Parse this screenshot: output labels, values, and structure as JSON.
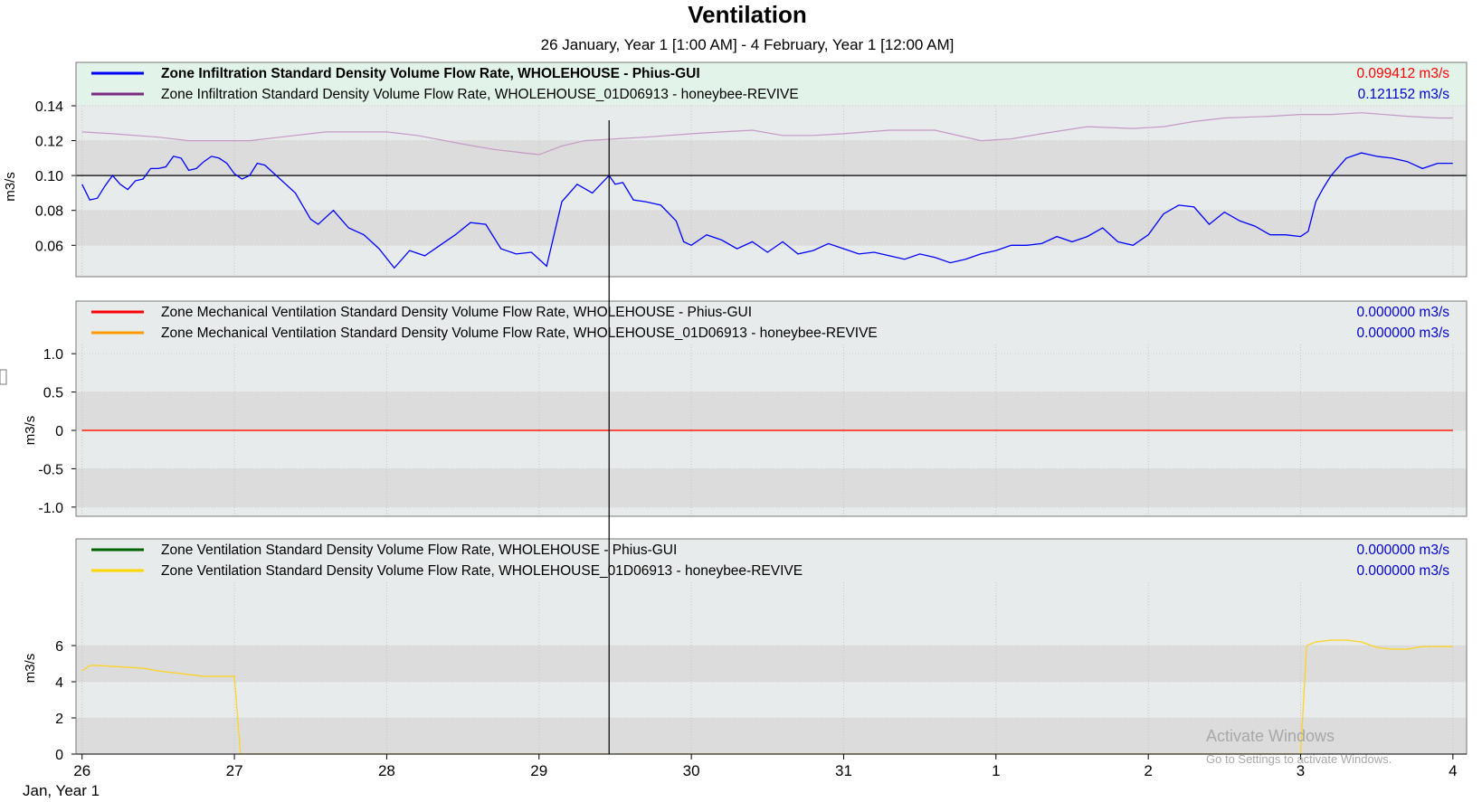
{
  "title": "Ventilation",
  "subtitle": "26 January, Year 1 [1:00 AM] - 4 February, Year 1 [12:00 AM]",
  "x_axis": {
    "tick_labels": [
      "26",
      "27",
      "28",
      "29",
      "30",
      "31",
      "1",
      "2",
      "3",
      "4"
    ],
    "tick_values": [
      0,
      1,
      2,
      3,
      4,
      5,
      6,
      7,
      8,
      9
    ],
    "start_label": "Jan, Year 1",
    "range": [
      -0.04,
      9.09
    ]
  },
  "cursor_x": 3.46,
  "watermark": {
    "title": "Activate Windows",
    "subtitle": "Go to Settings to activate Windows."
  },
  "colors": {
    "panel_bg": "#e8ebeb",
    "band_bg": "#dcdcdc",
    "legend_highlight": "#e2f4ea",
    "value_blue": "#0000cc",
    "value_red": "#ff0000"
  },
  "chart_data": [
    {
      "type": "line",
      "ylabel": "m3/s",
      "ylim": [
        0.042,
        0.14
      ],
      "yticks": [
        0.06,
        0.08,
        0.1,
        0.12,
        0.14
      ],
      "ytick_labels": [
        "0.06",
        "0.08",
        "0.10",
        "0.12",
        "0.14"
      ],
      "crosshair_y": 0.1,
      "highlighted": true,
      "series": [
        {
          "name": "Zone Infiltration Standard Density Volume Flow Rate, WHOLEHOUSE - Phius-GUI",
          "color": "#0000ff",
          "bold": true,
          "value_label": "0.099412 m3/s",
          "value_color": "#ff0000",
          "x": [
            0,
            0.05,
            0.1,
            0.15,
            0.2,
            0.25,
            0.3,
            0.35,
            0.4,
            0.45,
            0.5,
            0.55,
            0.6,
            0.65,
            0.7,
            0.75,
            0.8,
            0.85,
            0.9,
            0.95,
            1.0,
            1.05,
            1.1,
            1.15,
            1.2,
            1.3,
            1.4,
            1.5,
            1.55,
            1.65,
            1.75,
            1.85,
            1.95,
            2.05,
            2.15,
            2.25,
            2.35,
            2.45,
            2.55,
            2.65,
            2.75,
            2.85,
            2.95,
            3.05,
            3.15,
            3.25,
            3.35,
            3.46,
            3.5,
            3.55,
            3.62,
            3.7,
            3.8,
            3.9,
            3.95,
            4.0,
            4.1,
            4.2,
            4.3,
            4.4,
            4.5,
            4.6,
            4.7,
            4.8,
            4.9,
            5.0,
            5.1,
            5.2,
            5.3,
            5.4,
            5.5,
            5.6,
            5.7,
            5.8,
            5.9,
            6.0,
            6.1,
            6.2,
            6.3,
            6.4,
            6.5,
            6.6,
            6.7,
            6.8,
            6.9,
            7.0,
            7.1,
            7.2,
            7.3,
            7.4,
            7.5,
            7.6,
            7.7,
            7.8,
            7.9,
            8.0,
            8.05,
            8.1,
            8.15,
            8.2,
            8.3,
            8.4,
            8.5,
            8.6,
            8.7,
            8.8,
            8.9,
            9.0
          ],
          "y": [
            0.095,
            0.086,
            0.087,
            0.094,
            0.1,
            0.095,
            0.092,
            0.097,
            0.098,
            0.104,
            0.104,
            0.105,
            0.111,
            0.11,
            0.103,
            0.104,
            0.108,
            0.111,
            0.11,
            0.107,
            0.101,
            0.098,
            0.1,
            0.107,
            0.106,
            0.098,
            0.09,
            0.075,
            0.072,
            0.08,
            0.07,
            0.066,
            0.058,
            0.047,
            0.057,
            0.054,
            0.06,
            0.066,
            0.073,
            0.072,
            0.058,
            0.055,
            0.056,
            0.048,
            0.085,
            0.095,
            0.09,
            0.1,
            0.095,
            0.096,
            0.086,
            0.085,
            0.083,
            0.074,
            0.062,
            0.06,
            0.066,
            0.063,
            0.058,
            0.062,
            0.056,
            0.062,
            0.055,
            0.057,
            0.061,
            0.058,
            0.055,
            0.056,
            0.054,
            0.052,
            0.055,
            0.053,
            0.05,
            0.052,
            0.055,
            0.057,
            0.06,
            0.06,
            0.061,
            0.065,
            0.062,
            0.065,
            0.07,
            0.062,
            0.06,
            0.066,
            0.078,
            0.083,
            0.082,
            0.072,
            0.079,
            0.074,
            0.071,
            0.066,
            0.066,
            0.065,
            0.068,
            0.085,
            0.093,
            0.1,
            0.11,
            0.113,
            0.111,
            0.11,
            0.108,
            0.104,
            0.107,
            0.107
          ]
        },
        {
          "name": "Zone Infiltration Standard Density Volume Flow Rate, WHOLEHOUSE_01D06913 - honeybee-REVIVE",
          "color": "#7a2a82",
          "line_color": "#c49ac4",
          "bold": false,
          "value_label": "0.121152 m3/s",
          "value_color": "#0000cc",
          "x": [
            0,
            0.2,
            0.5,
            0.7,
            0.9,
            1.1,
            1.3,
            1.6,
            2.0,
            2.2,
            2.5,
            2.7,
            2.9,
            3.0,
            3.15,
            3.3,
            3.5,
            3.7,
            4.0,
            4.2,
            4.4,
            4.6,
            4.8,
            5.0,
            5.3,
            5.6,
            5.9,
            6.1,
            6.3,
            6.6,
            6.9,
            7.1,
            7.3,
            7.5,
            7.8,
            8.0,
            8.2,
            8.4,
            8.7,
            8.9,
            9.0
          ],
          "y": [
            0.125,
            0.124,
            0.122,
            0.12,
            0.12,
            0.12,
            0.122,
            0.125,
            0.125,
            0.123,
            0.118,
            0.115,
            0.113,
            0.112,
            0.117,
            0.12,
            0.121,
            0.122,
            0.124,
            0.125,
            0.126,
            0.123,
            0.123,
            0.124,
            0.126,
            0.126,
            0.12,
            0.121,
            0.124,
            0.128,
            0.127,
            0.128,
            0.131,
            0.133,
            0.134,
            0.135,
            0.135,
            0.136,
            0.134,
            0.133,
            0.133
          ]
        }
      ]
    },
    {
      "type": "line",
      "ylabel": "m3/s",
      "ylim": [
        -1.12,
        1.12
      ],
      "yticks": [
        -1.0,
        -0.5,
        0,
        0.5,
        1.0
      ],
      "ytick_labels": [
        "-1.0",
        "-0.5",
        "0",
        "0.5",
        "1.0"
      ],
      "highlighted": false,
      "series": [
        {
          "name": "Zone Mechanical Ventilation Standard Density Volume Flow Rate, WHOLEHOUSE - Phius-GUI",
          "color": "#ff0000",
          "bold": false,
          "value_label": "0.000000 m3/s",
          "value_color": "#0000cc",
          "x": [
            0,
            9
          ],
          "y": [
            0,
            0
          ]
        },
        {
          "name": "Zone Mechanical Ventilation Standard Density Volume Flow Rate, WHOLEHOUSE_01D06913 - honeybee-REVIVE",
          "color": "#ff9900",
          "bold": false,
          "value_label": "0.000000 m3/s",
          "value_color": "#0000cc",
          "x": [
            0,
            9
          ],
          "y": [
            0,
            0
          ]
        }
      ]
    },
    {
      "type": "line",
      "ylabel": "m3/s",
      "ylim": [
        0,
        9.5
      ],
      "yticks": [
        0,
        2,
        4,
        6
      ],
      "ytick_labels": [
        "0",
        "2",
        "4",
        "6"
      ],
      "highlighted": false,
      "series": [
        {
          "name": "Zone Ventilation Standard Density Volume Flow Rate, WHOLEHOUSE - Phius-GUI",
          "color": "#006400",
          "bold": false,
          "value_label": "0.000000 m3/s",
          "value_color": "#0000cc",
          "x": [],
          "y": []
        },
        {
          "name": "Zone Ventilation Standard Density Volume Flow Rate, WHOLEHOUSE_01D06913 - honeybee-REVIVE",
          "color": "#ffd700",
          "line_color": "#ffd21a",
          "bold": false,
          "value_label": "0.000000 m3/s",
          "value_color": "#0000cc",
          "x": [
            0,
            0.05,
            0.1,
            0.2,
            0.3,
            0.4,
            0.5,
            0.6,
            0.7,
            0.8,
            0.9,
            0.97,
            1.0,
            1.04,
            8.0,
            8.04,
            8.1,
            8.2,
            8.3,
            8.4,
            8.5,
            8.6,
            8.7,
            8.8,
            8.9,
            9.0
          ],
          "y": [
            4.6,
            4.9,
            4.9,
            4.85,
            4.8,
            4.75,
            4.6,
            4.5,
            4.4,
            4.3,
            4.3,
            4.3,
            4.3,
            0,
            0,
            6.0,
            6.2,
            6.3,
            6.3,
            6.2,
            5.9,
            5.8,
            5.8,
            5.95,
            5.95,
            5.95
          ]
        }
      ]
    }
  ]
}
